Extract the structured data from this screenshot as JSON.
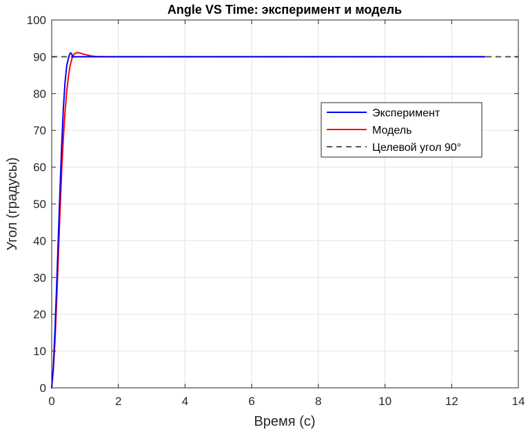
{
  "chart_data": {
    "type": "line",
    "title": "Angle VS Time: эксперимент и модель",
    "xlabel": "Время (с)",
    "ylabel": "Угол (градусы)",
    "xlim": [
      0,
      14
    ],
    "ylim": [
      0,
      100
    ],
    "xticks": [
      0,
      2,
      4,
      6,
      8,
      10,
      12,
      14
    ],
    "yticks": [
      0,
      10,
      20,
      30,
      40,
      50,
      60,
      70,
      80,
      90,
      100
    ],
    "grid": true,
    "legend_position": "upper-right",
    "series": [
      {
        "name": "Эксперимент",
        "color": "#0000ff",
        "style": "solid",
        "x": [
          0,
          0.05,
          0.1,
          0.15,
          0.2,
          0.25,
          0.3,
          0.35,
          0.4,
          0.45,
          0.5,
          0.53,
          0.56,
          0.58,
          0.6,
          0.62,
          0.65,
          0.7,
          0.8,
          1.0,
          1.5,
          2,
          4,
          6,
          8,
          10,
          12,
          13
        ],
        "y": [
          0,
          6,
          16,
          28,
          41,
          54,
          66,
          76,
          83,
          87.5,
          89.5,
          90.5,
          91,
          91,
          90.8,
          90.2,
          90,
          90,
          90,
          90,
          90,
          90,
          90,
          90,
          90,
          90,
          90,
          90
        ]
      },
      {
        "name": "Модель",
        "color": "#ff0000",
        "style": "solid",
        "x": [
          0,
          0.05,
          0.1,
          0.15,
          0.2,
          0.25,
          0.3,
          0.35,
          0.4,
          0.45,
          0.5,
          0.55,
          0.6,
          0.65,
          0.7,
          0.75,
          0.8,
          0.85,
          0.9,
          0.95,
          1.0,
          1.1,
          1.2,
          1.3,
          1.4,
          1.5,
          1.7,
          2,
          4,
          6,
          8,
          10,
          12,
          13
        ],
        "y": [
          0,
          5,
          13,
          24,
          36,
          48,
          59,
          68,
          75,
          80.5,
          84.5,
          87.5,
          89.3,
          90.4,
          90.9,
          91.1,
          91.1,
          91,
          90.9,
          90.7,
          90.6,
          90.4,
          90.2,
          90.1,
          90.05,
          90,
          90,
          90,
          90,
          90,
          90,
          90,
          90,
          90
        ]
      },
      {
        "name": "Целевой угол 90°",
        "color": "#555555",
        "style": "dashed",
        "x": [
          0,
          14
        ],
        "y": [
          90,
          90
        ]
      }
    ]
  }
}
